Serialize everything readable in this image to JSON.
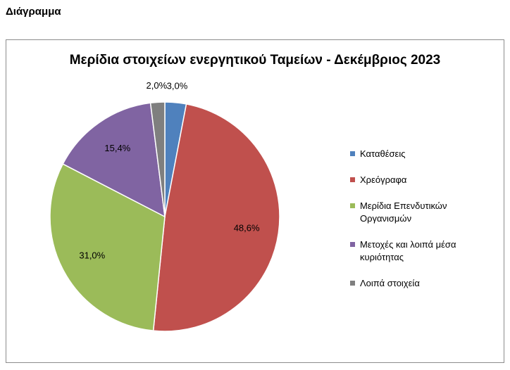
{
  "heading": "Διάγραμμα",
  "chart_data": {
    "type": "pie",
    "title": "Μερίδια στοιχείων ενεργητικού Ταμείων -  Δεκέμβριος 2023",
    "categories": [
      "Καταθέσεις",
      "Χρεόγραφα",
      "Μερίδια Επενδυτικών Οργανισμών",
      "Μετοχές και λοιπά μέσα κυριότητας",
      "Λοιπά στοιχεία"
    ],
    "values": [
      3.0,
      48.6,
      31.0,
      15.4,
      2.0
    ],
    "value_labels": [
      "3,0%",
      "48,6%",
      "31,0%",
      "15,4%",
      "2,0%"
    ],
    "colors": [
      "#4f81bd",
      "#c0504d",
      "#9bbb59",
      "#8064a2",
      "#7f7f7f"
    ],
    "legend": "right"
  }
}
